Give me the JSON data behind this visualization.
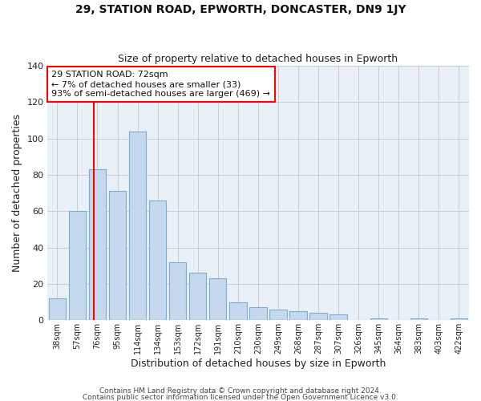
{
  "title": "29, STATION ROAD, EPWORTH, DONCASTER, DN9 1JY",
  "subtitle": "Size of property relative to detached houses in Epworth",
  "xlabel": "Distribution of detached houses by size in Epworth",
  "ylabel": "Number of detached properties",
  "bar_labels": [
    "38sqm",
    "57sqm",
    "76sqm",
    "95sqm",
    "114sqm",
    "134sqm",
    "153sqm",
    "172sqm",
    "191sqm",
    "210sqm",
    "230sqm",
    "249sqm",
    "268sqm",
    "287sqm",
    "307sqm",
    "326sqm",
    "345sqm",
    "364sqm",
    "383sqm",
    "403sqm",
    "422sqm"
  ],
  "bar_values": [
    12,
    60,
    83,
    71,
    104,
    66,
    32,
    26,
    23,
    10,
    7,
    6,
    5,
    4,
    3,
    0,
    1,
    0,
    1,
    0,
    1
  ],
  "bar_color": "#c5d8ed",
  "bar_edge_color": "#7aafd4",
  "grid_color": "#cccccc",
  "bg_color": "#eaf0f8",
  "annotation_text": "29 STATION ROAD: 72sqm\n← 7% of detached houses are smaller (33)\n93% of semi-detached houses are larger (469) →",
  "footer1": "Contains HM Land Registry data © Crown copyright and database right 2024.",
  "footer2": "Contains public sector information licensed under the Open Government Licence v3.0.",
  "ylim": [
    0,
    140
  ],
  "yticks": [
    0,
    20,
    40,
    60,
    80,
    100,
    120,
    140
  ],
  "redline_index": 1.82
}
